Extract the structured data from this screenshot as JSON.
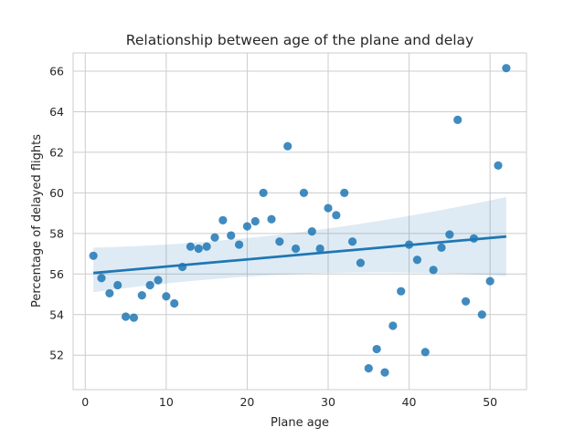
{
  "chart_data": {
    "type": "scatter",
    "title": "Relationship between age of the plane and delay",
    "xlabel": "Plane age",
    "ylabel": "Percentage of delayed flights",
    "xlim": [
      -1.5,
      54.5
    ],
    "ylim": [
      50.3,
      66.9
    ],
    "xticks": [
      0,
      10,
      20,
      30,
      40,
      50
    ],
    "yticks": [
      52,
      54,
      56,
      58,
      60,
      62,
      64,
      66
    ],
    "grid": true,
    "point_color": "#1f77b4",
    "regression": {
      "x": [
        1,
        52
      ],
      "y": [
        56.05,
        57.85
      ],
      "ci_upper": [
        57.3,
        59.8
      ],
      "ci_lower": [
        55.1,
        55.9
      ],
      "ci_mid": [
        26,
        56.95,
        56.95
      ],
      "color": "#1f77b4"
    },
    "points": [
      [
        1,
        56.9
      ],
      [
        2,
        55.8
      ],
      [
        3,
        55.05
      ],
      [
        4,
        55.45
      ],
      [
        5,
        53.9
      ],
      [
        6,
        53.85
      ],
      [
        7,
        54.95
      ],
      [
        8,
        55.45
      ],
      [
        9,
        55.7
      ],
      [
        10,
        54.9
      ],
      [
        11,
        54.55
      ],
      [
        12,
        56.35
      ],
      [
        13,
        57.35
      ],
      [
        14,
        57.25
      ],
      [
        15,
        57.35
      ],
      [
        16,
        57.8
      ],
      [
        17,
        58.65
      ],
      [
        18,
        57.9
      ],
      [
        19,
        57.45
      ],
      [
        20,
        58.35
      ],
      [
        21,
        58.6
      ],
      [
        22,
        60.0
      ],
      [
        23,
        58.7
      ],
      [
        24,
        57.6
      ],
      [
        25,
        62.3
      ],
      [
        26,
        57.25
      ],
      [
        27,
        60.0
      ],
      [
        28,
        58.1
      ],
      [
        29,
        57.25
      ],
      [
        30,
        59.25
      ],
      [
        31,
        58.9
      ],
      [
        32,
        60.0
      ],
      [
        33,
        57.6
      ],
      [
        34,
        56.55
      ],
      [
        35,
        51.35
      ],
      [
        36,
        52.3
      ],
      [
        37,
        51.15
      ],
      [
        38,
        53.45
      ],
      [
        39,
        55.15
      ],
      [
        40,
        57.45
      ],
      [
        41,
        56.7
      ],
      [
        42,
        52.15
      ],
      [
        43,
        56.2
      ],
      [
        44,
        57.3
      ],
      [
        45,
        57.95
      ],
      [
        46,
        63.6
      ],
      [
        47,
        54.65
      ],
      [
        48,
        57.75
      ],
      [
        49,
        54.0
      ],
      [
        50,
        55.65
      ],
      [
        51,
        61.35
      ],
      [
        52,
        66.15
      ]
    ]
  }
}
